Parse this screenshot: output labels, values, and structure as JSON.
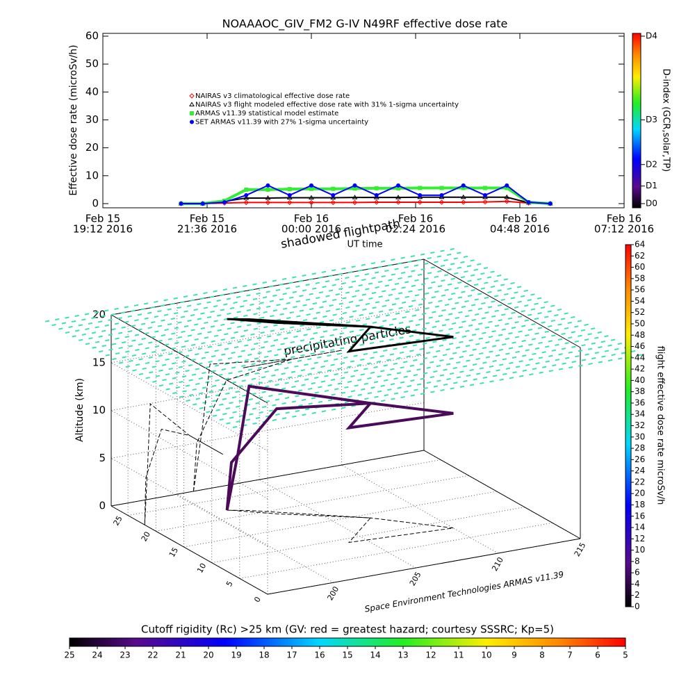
{
  "chart_data": [
    {
      "type": "scatter",
      "title": "NOAAAOC_GIV_FM2 G-IV   N49RF  effective dose rate",
      "ylabel": "Effective dose rate (microSv/h)",
      "xlabel": "UT time",
      "xlim": [
        "2016-02-15T19:12",
        "2016-02-16T07:12"
      ],
      "xticks": [
        {
          "value": "2016-02-15T19:12",
          "label": [
            "Feb 15",
            "19:12 2016"
          ]
        },
        {
          "value": "2016-02-15T21:36",
          "label": [
            "Feb 15",
            "21:36 2016"
          ]
        },
        {
          "value": "2016-02-16T00:00",
          "label": [
            "Feb 16",
            "00:00 2016"
          ]
        },
        {
          "value": "2016-02-16T02:24",
          "label": [
            "Feb 16",
            "02:24 2016"
          ]
        },
        {
          "value": "2016-02-16T04:48",
          "label": [
            "Feb 16",
            "04:48 2016"
          ]
        },
        {
          "value": "2016-02-16T07:12",
          "label": [
            "Feb 16",
            "07:12 2016"
          ]
        }
      ],
      "ylim": [
        -1.5,
        61
      ],
      "yticks": [
        0,
        10,
        20,
        30,
        40,
        50,
        60
      ],
      "x": [
        "2016-02-15T21:00",
        "2016-02-15T21:30",
        "2016-02-15T22:00",
        "2016-02-15T22:30",
        "2016-02-15T23:00",
        "2016-02-15T23:30",
        "2016-02-16T00:00",
        "2016-02-16T00:30",
        "2016-02-16T01:00",
        "2016-02-16T01:30",
        "2016-02-16T02:00",
        "2016-02-16T02:30",
        "2016-02-16T03:00",
        "2016-02-16T03:30",
        "2016-02-16T04:00",
        "2016-02-16T04:30",
        "2016-02-16T05:00",
        "2016-02-16T05:30"
      ],
      "series": [
        {
          "name": "NAIRAS v3 climatological effective dose rate",
          "color": "#ff0000",
          "marker": "diamond",
          "values": [
            0,
            0,
            0.2,
            0.4,
            0.4,
            0.4,
            0.4,
            0.4,
            0.4,
            0.5,
            0.5,
            0.5,
            0.5,
            0.5,
            0.6,
            0.8,
            0.2,
            0
          ]
        },
        {
          "name": "NAIRAS v3 flight modeled effective dose rate with 31% 1-sigma uncertainty",
          "color": "#000000",
          "marker": "triangle",
          "values": [
            0,
            0,
            0.8,
            2,
            2,
            2.1,
            2.1,
            2.1,
            2.2,
            2.2,
            2.2,
            2.3,
            2.3,
            2.3,
            2.3,
            2.3,
            0.3,
            0
          ]
        },
        {
          "name": "ARMAS v11.39 statistical model estimate",
          "color": "#33ee33",
          "marker": "square",
          "values": [
            0,
            0,
            1,
            5,
            5,
            5.2,
            5.3,
            5.3,
            5.4,
            5.5,
            5.5,
            5.6,
            5.6,
            5.6,
            5.6,
            5.6,
            0.5,
            0
          ]
        },
        {
          "name": "SET ARMAS v11.39 with 27% 1-sigma uncertainty",
          "color": "#0000ff",
          "marker": "circle",
          "values": [
            0,
            0,
            0.5,
            3,
            6.5,
            3,
            6.5,
            3,
            6.5,
            3,
            6.5,
            3,
            3,
            6.5,
            3,
            6.5,
            0.5,
            0
          ]
        }
      ],
      "colorbar": {
        "title": "D-index (GCR,solar,TP)",
        "ticks": [
          {
            "value": 0,
            "label": "D0"
          },
          {
            "value": 6.3,
            "label": "D1"
          },
          {
            "value": 14,
            "label": "D2"
          },
          {
            "value": 30,
            "label": "D3"
          },
          {
            "value": 60,
            "label": "D4"
          }
        ]
      }
    },
    {
      "type": "3d",
      "zlabel": "Altitude (km)",
      "xlim": [
        196,
        215
      ],
      "xticks": [
        200,
        205,
        210,
        215
      ],
      "ylim": [
        0,
        28
      ],
      "yticks": [
        0,
        5,
        10,
        15,
        20,
        25
      ],
      "zlim": [
        0,
        20
      ],
      "zticks": [
        0,
        5,
        10,
        15,
        20
      ],
      "credit": "Space Environment Technologies ARMAS v11.39",
      "annotations": [
        "shadowed flightpath",
        "precipitating particles"
      ],
      "path": {
        "color": "#4b0a5a",
        "lon": [
          201,
          201.5,
          202,
          207,
          204,
          210,
          207,
          203,
          201.2,
          201
        ],
        "lat": [
          22,
          21.5,
          21,
          14,
          9,
          8,
          14,
          19,
          21.8,
          22
        ],
        "alt": [
          0,
          6,
          13,
          12,
          12,
          12,
          12,
          11,
          5,
          0
        ]
      },
      "colorbar": {
        "title": "flight effective dose rate microSv/h",
        "lim": [
          0,
          64
        ],
        "ticks": [
          0,
          2,
          4,
          6,
          8,
          10,
          12,
          14,
          16,
          18,
          20,
          22,
          24,
          26,
          28,
          30,
          32,
          34,
          36,
          38,
          40,
          42,
          44,
          46,
          48,
          50,
          52,
          54,
          56,
          58,
          60,
          62,
          64
        ]
      },
      "cutoff_colorbar": {
        "title": "Cutoff rigidity (Rc) >25 km (GV: red = greatest hazard; courtesy SSSRC; Kp=5)",
        "lim": [
          25,
          5
        ],
        "ticks": [
          25,
          24,
          23,
          22,
          21,
          20,
          19,
          18,
          17,
          16,
          15,
          14,
          13,
          12,
          11,
          10,
          9,
          8,
          7,
          6,
          5
        ]
      }
    }
  ]
}
